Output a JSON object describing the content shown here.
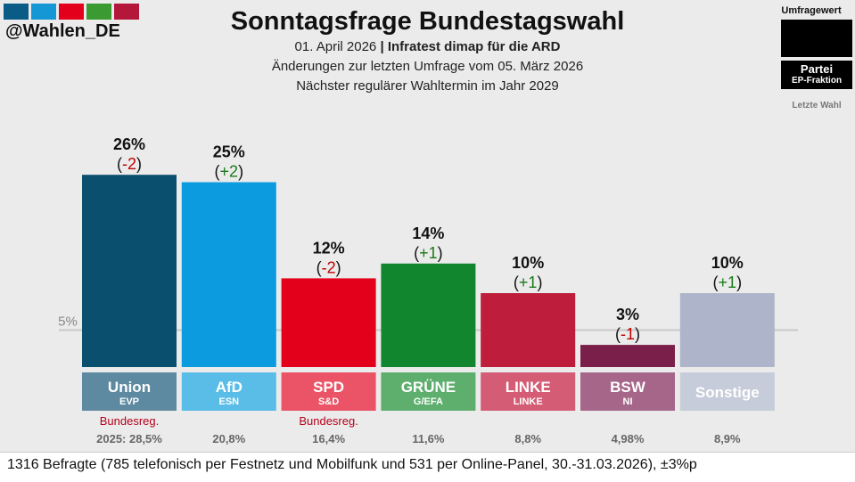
{
  "header": {
    "handle": "@Wahlen_DE",
    "title": "Sonntagsfrage Bundestagswahl",
    "date": "01. April 2026",
    "separator": " | ",
    "institute": "Infratest dimap für die ARD",
    "changes": "Änderungen zur letzten Umfrage vom 05. März 2026",
    "next_election": "Nächster regulärer Wahltermin im Jahr 2029",
    "swatch_colors": [
      "#0a5b86",
      "#1597d5",
      "#e2001a",
      "#3b9a32",
      "#b5173a"
    ]
  },
  "legend": {
    "poll_label": "Umfragewert",
    "party_label": "Partei",
    "group_label": "EP-Fraktion",
    "last_label": "Letzte Wahl"
  },
  "chart_data": {
    "type": "bar",
    "title": "Sonntagsfrage Bundestagswahl",
    "threshold": 5,
    "threshold_label": "5%",
    "ylim": [
      0,
      28
    ],
    "categories": [
      "Union",
      "AfD",
      "SPD",
      "GRÜNE",
      "LINKE",
      "BSW",
      "Sonstige"
    ],
    "values": [
      26,
      25,
      12,
      14,
      10,
      3,
      10
    ],
    "value_labels": [
      "26%",
      "25%",
      "12%",
      "14%",
      "10%",
      "3%",
      "10%"
    ],
    "changes": [
      "-2",
      "+2",
      "-2",
      "+1",
      "+1",
      "-1",
      "+1"
    ],
    "ep_groups": [
      "EVP",
      "ESN",
      "S&D",
      "G/EFA",
      "LINKE",
      "NI",
      ""
    ],
    "government_notes": [
      "Bundesreg.",
      "",
      "Bundesreg.",
      "",
      "",
      "",
      ""
    ],
    "last_election": [
      "2025: 28,5%",
      "20,8%",
      "16,4%",
      "11,6%",
      "8,8%",
      "4,98%",
      "8,9%"
    ],
    "bar_colors": [
      "#0a4f6e",
      "#0d9be0",
      "#e2001a",
      "#12862e",
      "#be1e3c",
      "#7a1f4a",
      "#aeb5ca"
    ],
    "label_colors": [
      "#5d8aa0",
      "#59bde8",
      "#ea5466",
      "#5eae6e",
      "#d45c75",
      "#a6668a",
      "#c7ccda"
    ],
    "change_pos_color": "#1a7a1a",
    "change_neg_color": "#c00000"
  },
  "footer": {
    "text": "1316 Befragte (785 telefonisch per Festnetz und Mobilfunk und 531 per Online-Panel, 30.-31.03.2026), ±3%p"
  }
}
